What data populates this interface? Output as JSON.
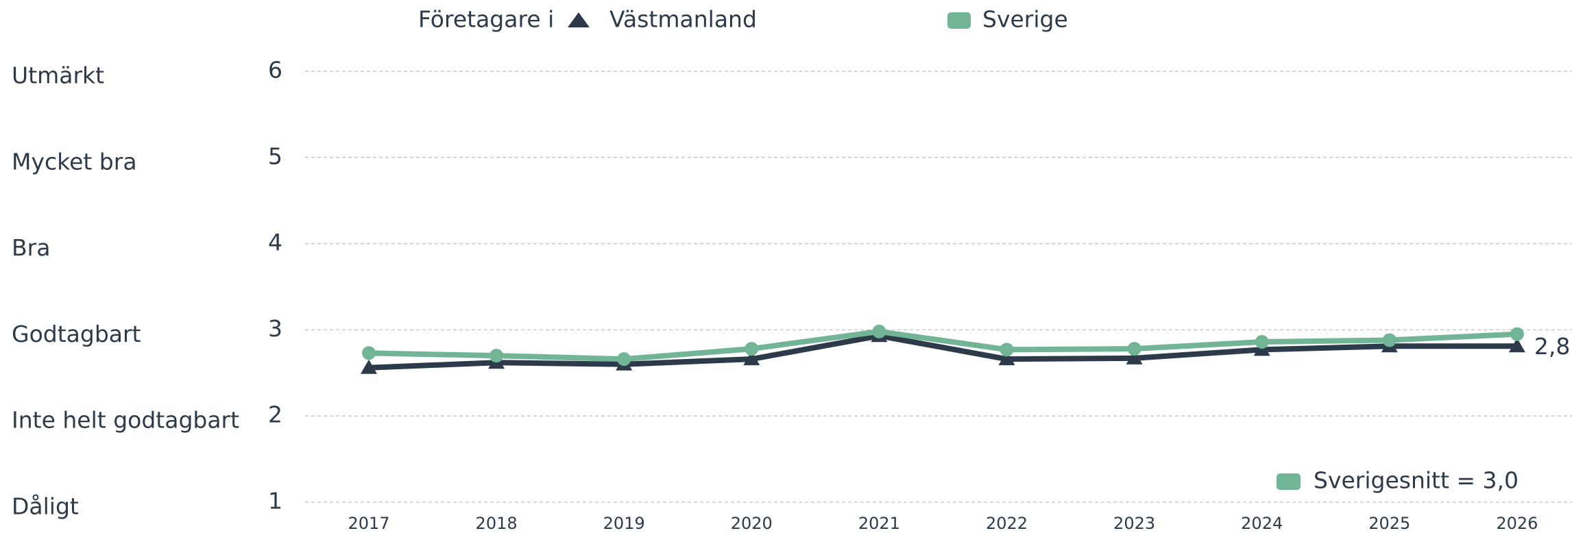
{
  "chart_data": {
    "type": "line",
    "legend_title": "Företagare i",
    "categories": [
      "2017",
      "2018",
      "2019",
      "2020",
      "2021",
      "2022",
      "2023",
      "2024",
      "2025",
      "2026"
    ],
    "series": [
      {
        "name": "Västmanland",
        "color": "#2d3a4a",
        "marker": "triangle",
        "values": [
          2.56,
          2.62,
          2.6,
          2.66,
          2.93,
          2.66,
          2.67,
          2.77,
          2.81,
          2.81
        ],
        "value_labels": [
          null,
          null,
          null,
          null,
          null,
          null,
          null,
          null,
          null,
          "2,8"
        ]
      },
      {
        "name": "Sverige",
        "color": "#72b596",
        "marker": "circle",
        "values": [
          2.73,
          2.7,
          2.66,
          2.78,
          2.98,
          2.77,
          2.78,
          2.86,
          2.88,
          2.95
        ]
      }
    ],
    "ylim": [
      1,
      6
    ],
    "yticks": [
      1,
      2,
      3,
      4,
      5,
      6
    ],
    "ytick_descriptions": [
      "Dåligt",
      "Inte helt godtagbart",
      "Godtagbart",
      "Bra",
      "Mycket bra",
      "Utmärkt"
    ],
    "grid": true,
    "annotation": {
      "text": "Sverigesnitt = 3,0",
      "color": "#72b596"
    }
  }
}
